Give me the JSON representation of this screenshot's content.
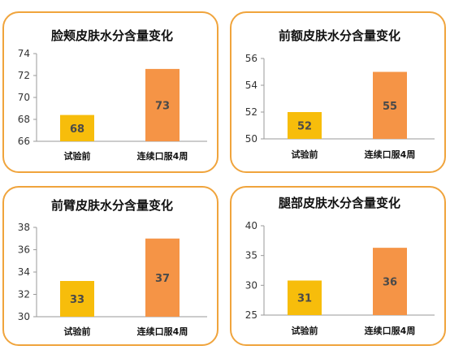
{
  "colors": {
    "border": "#f0a43c",
    "bar_before": "#f7bd0b",
    "bar_after": "#f59446"
  },
  "chart_data": [
    {
      "type": "bar",
      "title": "脸颊皮肤水分含量变化",
      "categories": [
        "试验前",
        "连续口服4周"
      ],
      "values": [
        68.4,
        72.6
      ],
      "value_labels": [
        "68",
        "73"
      ],
      "yticks": [
        "66",
        "68",
        "70",
        "72",
        "74"
      ],
      "ylim": [
        66,
        74
      ],
      "grid": false
    },
    {
      "type": "bar",
      "title": "前额皮肤水分含量变化",
      "categories": [
        "试验前",
        "连续口服4周"
      ],
      "values": [
        52,
        55
      ],
      "value_labels": [
        "52",
        "55"
      ],
      "yticks": [
        "50",
        "52",
        "54",
        "56"
      ],
      "ylim": [
        50,
        56
      ],
      "grid": false
    },
    {
      "type": "bar",
      "title": "前臂皮肤水分含量变化",
      "categories": [
        "试验前",
        "连续口服4周"
      ],
      "values": [
        33.2,
        37
      ],
      "value_labels": [
        "33",
        "37"
      ],
      "yticks": [
        "30",
        "32",
        "34",
        "36",
        "38"
      ],
      "ylim": [
        30,
        38
      ],
      "grid": false
    },
    {
      "type": "bar",
      "title": "腿部皮肤水分含量变化",
      "categories": [
        "试验前",
        "连续口服4周"
      ],
      "values": [
        30.8,
        36.3
      ],
      "value_labels": [
        "31",
        "36"
      ],
      "yticks": [
        "25",
        "30",
        "35",
        "40"
      ],
      "ylim": [
        25,
        40
      ],
      "grid": false
    }
  ]
}
